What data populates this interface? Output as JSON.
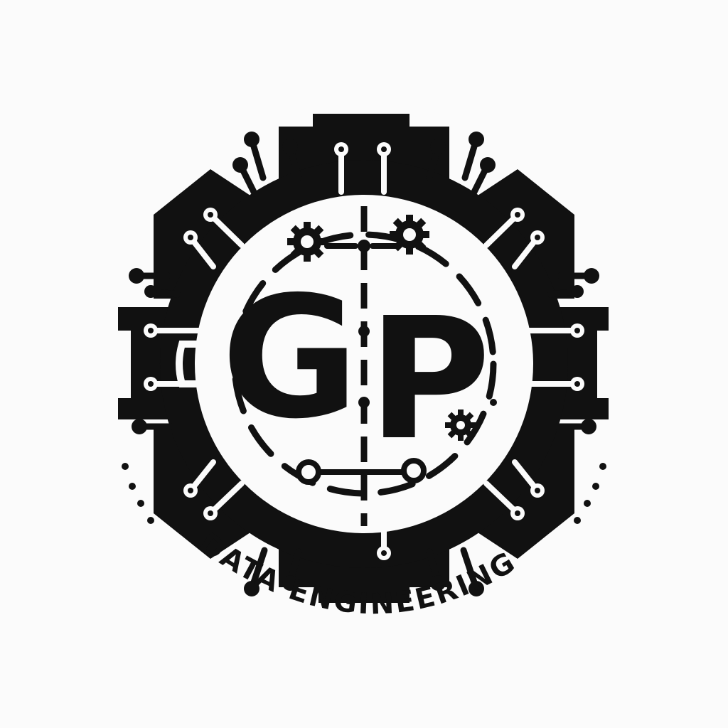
{
  "logo": {
    "monogram_left": "G",
    "monogram_right": "P",
    "tagline": "DATA ENGINEERING",
    "ink_color": "#111111",
    "background_color": "#fbfbfb"
  },
  "icons": {
    "gear": "gear-icon",
    "circuit_node": "circuit-node-icon"
  }
}
